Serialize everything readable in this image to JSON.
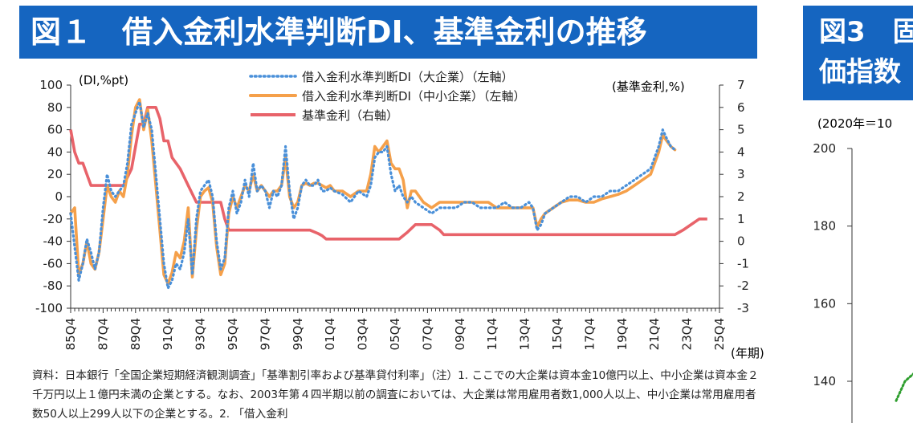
{
  "figure1": {
    "title": "図１　借入金利水準判断DI、基準金利の推移",
    "left_axis_unit": "(DI,%pt)",
    "right_axis_unit": "(基準金利,%)",
    "x_unit": "(年期)",
    "note": "資料：日本銀行「全国企業短期経済観測調査」「基準割引率および基準貸付利率」（注）1. ここでの大企業は資本金10億円以上、中小企業は資本金２千万円以上１億円未満の企業とする。なお、2003年第４四半期以前の調査においては、大企業は常用雇用者数1,000人以上、中小企業は常用雇用者数50人以上299人以下の企業とする。2. 「借入金利"
  },
  "colors": {
    "banner": "#1565c0",
    "large_enterprise": "#4a90d9",
    "sme": "#f5a04a",
    "base_rate": "#e8636a"
  },
  "chart_data": {
    "type": "line",
    "x_tick_labels": [
      "85Q4",
      "87Q4",
      "89Q4",
      "91Q4",
      "93Q4",
      "95Q4",
      "97Q4",
      "99Q4",
      "01Q4",
      "03Q4",
      "05Q4",
      "07Q4",
      "09Q4",
      "11Q4",
      "13Q4",
      "15Q4",
      "17Q4",
      "19Q4",
      "21Q4",
      "23Q4",
      "25Q4"
    ],
    "x_range": [
      1985.75,
      2025.75
    ],
    "y_left": {
      "range": [
        -100,
        100
      ],
      "ticks": [
        100,
        80,
        60,
        40,
        20,
        0,
        -20,
        -40,
        -60,
        -80,
        -100
      ]
    },
    "y_right": {
      "range": [
        -3,
        7
      ],
      "ticks": [
        7,
        6,
        5,
        4,
        3,
        2,
        1,
        0,
        -1,
        -2,
        -3
      ]
    },
    "legend": {
      "position": "top-center"
    },
    "series": [
      {
        "name": "借入金利水準判断DI（大企業）（左軸）",
        "axis": "left",
        "style": "dotted",
        "points": [
          [
            1985.75,
            -15
          ],
          [
            1986.0,
            -45
          ],
          [
            1986.25,
            -75
          ],
          [
            1986.5,
            -60
          ],
          [
            1986.75,
            -38
          ],
          [
            1987.0,
            -50
          ],
          [
            1987.25,
            -65
          ],
          [
            1987.5,
            -50
          ],
          [
            1987.75,
            -10
          ],
          [
            1988.0,
            20
          ],
          [
            1988.25,
            5
          ],
          [
            1988.5,
            0
          ],
          [
            1988.75,
            5
          ],
          [
            1989.0,
            10
          ],
          [
            1989.25,
            30
          ],
          [
            1989.5,
            65
          ],
          [
            1989.75,
            75
          ],
          [
            1990.0,
            85
          ],
          [
            1990.25,
            62
          ],
          [
            1990.5,
            75
          ],
          [
            1990.75,
            60
          ],
          [
            1991.0,
            20
          ],
          [
            1991.25,
            -20
          ],
          [
            1991.5,
            -60
          ],
          [
            1991.75,
            -82
          ],
          [
            1992.0,
            -75
          ],
          [
            1992.25,
            -60
          ],
          [
            1992.5,
            -65
          ],
          [
            1992.75,
            -50
          ],
          [
            1993.0,
            -20
          ],
          [
            1993.25,
            -70
          ],
          [
            1993.5,
            -20
          ],
          [
            1993.75,
            5
          ],
          [
            1994.0,
            10
          ],
          [
            1994.25,
            15
          ],
          [
            1994.5,
            0
          ],
          [
            1994.75,
            -40
          ],
          [
            1995.0,
            -65
          ],
          [
            1995.25,
            -55
          ],
          [
            1995.5,
            -10
          ],
          [
            1995.75,
            5
          ],
          [
            1996.0,
            -15
          ],
          [
            1996.25,
            -5
          ],
          [
            1996.5,
            15
          ],
          [
            1996.75,
            0
          ],
          [
            1997.0,
            30
          ],
          [
            1997.25,
            5
          ],
          [
            1997.5,
            10
          ],
          [
            1997.75,
            5
          ],
          [
            1998.0,
            -10
          ],
          [
            1998.25,
            5
          ],
          [
            1998.5,
            0
          ],
          [
            1998.75,
            10
          ],
          [
            1999.0,
            45
          ],
          [
            1999.25,
            5
          ],
          [
            1999.5,
            -20
          ],
          [
            1999.75,
            -10
          ],
          [
            2000.0,
            10
          ],
          [
            2000.25,
            15
          ],
          [
            2000.5,
            10
          ],
          [
            2000.75,
            10
          ],
          [
            2001.0,
            15
          ],
          [
            2001.25,
            5
          ],
          [
            2001.5,
            5
          ],
          [
            2001.75,
            8
          ],
          [
            2002.0,
            5
          ],
          [
            2002.5,
            2
          ],
          [
            2003.0,
            -5
          ],
          [
            2003.5,
            5
          ],
          [
            2004.0,
            0
          ],
          [
            2004.25,
            10
          ],
          [
            2004.5,
            35
          ],
          [
            2004.75,
            40
          ],
          [
            2005.0,
            40
          ],
          [
            2005.25,
            45
          ],
          [
            2005.5,
            20
          ],
          [
            2005.75,
            5
          ],
          [
            2006.0,
            10
          ],
          [
            2006.25,
            0
          ],
          [
            2006.5,
            -5
          ],
          [
            2006.75,
            0
          ],
          [
            2007.0,
            -5
          ],
          [
            2007.5,
            -10
          ],
          [
            2008.0,
            -15
          ],
          [
            2008.5,
            -10
          ],
          [
            2009.0,
            -10
          ],
          [
            2009.5,
            -10
          ],
          [
            2010.0,
            -5
          ],
          [
            2010.5,
            -5
          ],
          [
            2011.0,
            -10
          ],
          [
            2011.5,
            -10
          ],
          [
            2012.0,
            -10
          ],
          [
            2012.5,
            -5
          ],
          [
            2013.0,
            -10
          ],
          [
            2013.5,
            -10
          ],
          [
            2014.0,
            -5
          ],
          [
            2014.25,
            -10
          ],
          [
            2014.5,
            -30
          ],
          [
            2014.75,
            -25
          ],
          [
            2015.0,
            -15
          ],
          [
            2015.5,
            -10
          ],
          [
            2016.0,
            -5
          ],
          [
            2016.5,
            0
          ],
          [
            2017.0,
            0
          ],
          [
            2017.5,
            -5
          ],
          [
            2018.0,
            0
          ],
          [
            2018.5,
            0
          ],
          [
            2019.0,
            5
          ],
          [
            2019.5,
            5
          ],
          [
            2020.0,
            10
          ],
          [
            2020.5,
            15
          ],
          [
            2021.0,
            20
          ],
          [
            2021.5,
            25
          ],
          [
            2022.0,
            45
          ],
          [
            2022.25,
            60
          ],
          [
            2022.5,
            52
          ],
          [
            2022.75,
            45
          ],
          [
            2023.0,
            42
          ]
        ]
      },
      {
        "name": "借入金利水準判断DI（中小企業）（左軸）",
        "axis": "left",
        "style": "solid",
        "points": [
          [
            1985.75,
            -15
          ],
          [
            1986.0,
            -10
          ],
          [
            1986.25,
            -70
          ],
          [
            1986.5,
            -60
          ],
          [
            1986.75,
            -40
          ],
          [
            1987.0,
            -60
          ],
          [
            1987.25,
            -65
          ],
          [
            1987.5,
            -50
          ],
          [
            1987.75,
            -20
          ],
          [
            1988.0,
            10
          ],
          [
            1988.25,
            0
          ],
          [
            1988.5,
            -5
          ],
          [
            1988.75,
            5
          ],
          [
            1989.0,
            0
          ],
          [
            1989.25,
            20
          ],
          [
            1989.5,
            55
          ],
          [
            1989.75,
            80
          ],
          [
            1990.0,
            87
          ],
          [
            1990.25,
            60
          ],
          [
            1990.5,
            78
          ],
          [
            1990.75,
            50
          ],
          [
            1991.0,
            10
          ],
          [
            1991.25,
            -30
          ],
          [
            1991.5,
            -70
          ],
          [
            1991.75,
            -78
          ],
          [
            1992.0,
            -68
          ],
          [
            1992.25,
            -50
          ],
          [
            1992.5,
            -55
          ],
          [
            1992.75,
            -40
          ],
          [
            1993.0,
            -10
          ],
          [
            1993.25,
            -72
          ],
          [
            1993.5,
            -30
          ],
          [
            1993.75,
            0
          ],
          [
            1994.0,
            5
          ],
          [
            1994.25,
            8
          ],
          [
            1994.5,
            -5
          ],
          [
            1994.75,
            -45
          ],
          [
            1995.0,
            -70
          ],
          [
            1995.25,
            -60
          ],
          [
            1995.5,
            -15
          ],
          [
            1995.75,
            0
          ],
          [
            1996.0,
            -10
          ],
          [
            1996.25,
            0
          ],
          [
            1996.5,
            10
          ],
          [
            1996.75,
            5
          ],
          [
            1997.0,
            20
          ],
          [
            1997.25,
            5
          ],
          [
            1997.5,
            10
          ],
          [
            1997.75,
            5
          ],
          [
            1998.0,
            0
          ],
          [
            1998.25,
            5
          ],
          [
            1998.5,
            5
          ],
          [
            1998.75,
            10
          ],
          [
            1999.0,
            35
          ],
          [
            1999.25,
            0
          ],
          [
            1999.5,
            -10
          ],
          [
            1999.75,
            -5
          ],
          [
            2000.0,
            10
          ],
          [
            2000.25,
            12
          ],
          [
            2000.5,
            10
          ],
          [
            2000.75,
            12
          ],
          [
            2001.0,
            12
          ],
          [
            2001.25,
            10
          ],
          [
            2001.5,
            8
          ],
          [
            2001.75,
            10
          ],
          [
            2002.0,
            5
          ],
          [
            2002.5,
            5
          ],
          [
            2003.0,
            0
          ],
          [
            2003.5,
            5
          ],
          [
            2004.0,
            5
          ],
          [
            2004.25,
            20
          ],
          [
            2004.5,
            45
          ],
          [
            2004.75,
            40
          ],
          [
            2005.0,
            45
          ],
          [
            2005.25,
            50
          ],
          [
            2005.5,
            30
          ],
          [
            2005.75,
            25
          ],
          [
            2006.0,
            25
          ],
          [
            2006.25,
            15
          ],
          [
            2006.5,
            -10
          ],
          [
            2006.75,
            5
          ],
          [
            2007.0,
            5
          ],
          [
            2007.5,
            -5
          ],
          [
            2008.0,
            -10
          ],
          [
            2008.5,
            -5
          ],
          [
            2009.0,
            -5
          ],
          [
            2009.5,
            -5
          ],
          [
            2010.0,
            -5
          ],
          [
            2010.5,
            -5
          ],
          [
            2011.0,
            -5
          ],
          [
            2011.5,
            -5
          ],
          [
            2012.0,
            -10
          ],
          [
            2012.5,
            -10
          ],
          [
            2013.0,
            -10
          ],
          [
            2013.5,
            -10
          ],
          [
            2014.0,
            -10
          ],
          [
            2014.25,
            -10
          ],
          [
            2014.5,
            -27
          ],
          [
            2014.75,
            -20
          ],
          [
            2015.0,
            -15
          ],
          [
            2015.5,
            -10
          ],
          [
            2016.0,
            -5
          ],
          [
            2016.5,
            -3
          ],
          [
            2017.0,
            -3
          ],
          [
            2017.5,
            -5
          ],
          [
            2018.0,
            -5
          ],
          [
            2018.5,
            -2
          ],
          [
            2019.0,
            0
          ],
          [
            2019.5,
            2
          ],
          [
            2020.0,
            5
          ],
          [
            2020.5,
            10
          ],
          [
            2021.0,
            15
          ],
          [
            2021.5,
            20
          ],
          [
            2022.0,
            40
          ],
          [
            2022.25,
            55
          ],
          [
            2022.5,
            50
          ],
          [
            2022.75,
            45
          ],
          [
            2023.0,
            42
          ]
        ]
      },
      {
        "name": "基準金利（右軸）",
        "axis": "right",
        "style": "solid",
        "points": [
          [
            1985.75,
            5.0
          ],
          [
            1986.0,
            4.0
          ],
          [
            1986.25,
            3.5
          ],
          [
            1986.5,
            3.5
          ],
          [
            1986.75,
            3.0
          ],
          [
            1987.0,
            2.5
          ],
          [
            1988.0,
            2.5
          ],
          [
            1989.0,
            2.5
          ],
          [
            1989.5,
            3.25
          ],
          [
            1989.75,
            4.25
          ],
          [
            1990.0,
            5.25
          ],
          [
            1990.25,
            5.25
          ],
          [
            1990.5,
            6.0
          ],
          [
            1990.75,
            6.0
          ],
          [
            1991.0,
            6.0
          ],
          [
            1991.25,
            5.5
          ],
          [
            1991.5,
            4.5
          ],
          [
            1991.75,
            4.5
          ],
          [
            1992.0,
            3.75
          ],
          [
            1992.5,
            3.25
          ],
          [
            1993.0,
            2.5
          ],
          [
            1993.5,
            1.75
          ],
          [
            1994.0,
            1.75
          ],
          [
            1994.5,
            1.75
          ],
          [
            1995.0,
            1.75
          ],
          [
            1995.25,
            1.0
          ],
          [
            1995.5,
            0.5
          ],
          [
            1996.0,
            0.5
          ],
          [
            1998.0,
            0.5
          ],
          [
            2000.0,
            0.5
          ],
          [
            2000.5,
            0.5
          ],
          [
            2001.0,
            0.35
          ],
          [
            2001.25,
            0.25
          ],
          [
            2001.5,
            0.1
          ],
          [
            2002.0,
            0.1
          ],
          [
            2005.0,
            0.1
          ],
          [
            2006.0,
            0.1
          ],
          [
            2006.5,
            0.4
          ],
          [
            2007.0,
            0.75
          ],
          [
            2008.0,
            0.75
          ],
          [
            2008.5,
            0.5
          ],
          [
            2008.75,
            0.3
          ],
          [
            2009.0,
            0.3
          ],
          [
            2015.0,
            0.3
          ],
          [
            2020.0,
            0.3
          ],
          [
            2022.0,
            0.3
          ],
          [
            2023.0,
            0.3
          ],
          [
            2023.25,
            0.4
          ],
          [
            2023.5,
            0.5
          ],
          [
            2024.0,
            0.75
          ],
          [
            2024.5,
            1.0
          ],
          [
            2025.0,
            1.0
          ]
        ]
      }
    ]
  },
  "figure3": {
    "title_line1": "図3　固",
    "title_line2": "価指数",
    "unit": "(2020年＝10",
    "chart_data": {
      "type": "line",
      "y_ticks": [
        200,
        180,
        160,
        140
      ],
      "y_range": [
        130,
        200
      ],
      "color": "#2e9e2e",
      "points": [
        [
          0.0,
          135
        ],
        [
          0.5,
          140
        ],
        [
          1.0,
          142
        ]
      ]
    }
  }
}
